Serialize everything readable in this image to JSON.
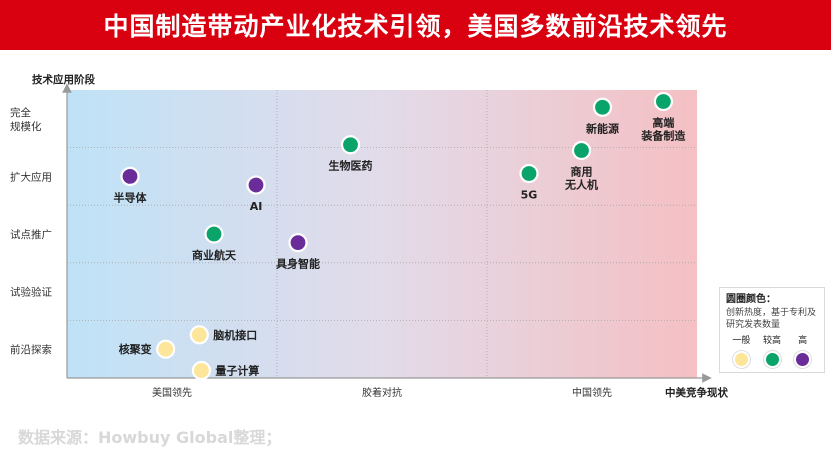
{
  "title": "中国制造带动产业化技术引领，美国多数前沿技术领先",
  "source": "数据来源：Howbuy Global整理；",
  "chart_data": {
    "type": "scatter",
    "xlabel": "中美竞争现状",
    "ylabel": "技术应用阶段",
    "x_categories": [
      "美国领先",
      "胶着对抗",
      "中国领先"
    ],
    "y_categories": [
      "前沿探索",
      "试验验证",
      "试点推广",
      "扩大应用",
      "完全规模化"
    ],
    "xlim": [
      0,
      3
    ],
    "ylim": [
      0,
      5
    ],
    "points": [
      {
        "label": "高端装备制造",
        "lines": [
          "高端",
          "装备制造"
        ],
        "x": 2.84,
        "y": 4.8,
        "heat": "较高"
      },
      {
        "label": "新能源",
        "lines": [
          "新能源"
        ],
        "x": 2.55,
        "y": 4.7,
        "heat": "较高"
      },
      {
        "label": "商用无人机",
        "lines": [
          "商用",
          "无人机"
        ],
        "x": 2.45,
        "y": 3.95,
        "heat": "较高"
      },
      {
        "label": "5G",
        "lines": [
          "5G"
        ],
        "x": 2.2,
        "y": 3.55,
        "heat": "较高"
      },
      {
        "label": "生物医药",
        "lines": [
          "生物医药"
        ],
        "x": 1.35,
        "y": 4.05,
        "heat": "较高"
      },
      {
        "label": "半导体",
        "lines": [
          "半导体"
        ],
        "x": 0.3,
        "y": 3.5,
        "heat": "高"
      },
      {
        "label": "AI",
        "lines": [
          "AI"
        ],
        "x": 0.9,
        "y": 3.35,
        "heat": "高"
      },
      {
        "label": "商业航天",
        "lines": [
          "商业航天"
        ],
        "x": 0.7,
        "y": 2.5,
        "heat": "较高"
      },
      {
        "label": "具身智能",
        "lines": [
          "具身智能"
        ],
        "x": 1.1,
        "y": 2.35,
        "heat": "高"
      },
      {
        "label": "脑机接口",
        "lines": [
          "脑机接口"
        ],
        "x": 0.63,
        "y": 0.75,
        "heat": "一般"
      },
      {
        "label": "核聚变",
        "lines": [
          "核聚变"
        ],
        "x": 0.47,
        "y": 0.5,
        "heat": "一般"
      },
      {
        "label": "量子计算",
        "lines": [
          "量子计算"
        ],
        "x": 0.64,
        "y": 0.13,
        "heat": "一般"
      }
    ],
    "legend": {
      "title": "圆圈颜色：",
      "description": "创新热度，基于专利及研究发表数量",
      "items": [
        {
          "label": "一般",
          "color": "#fde59a"
        },
        {
          "label": "较高",
          "color": "#0aa36a"
        },
        {
          "label": "高",
          "color": "#6a2c98"
        }
      ],
      "placement": "bottom-right"
    },
    "grid": true
  }
}
